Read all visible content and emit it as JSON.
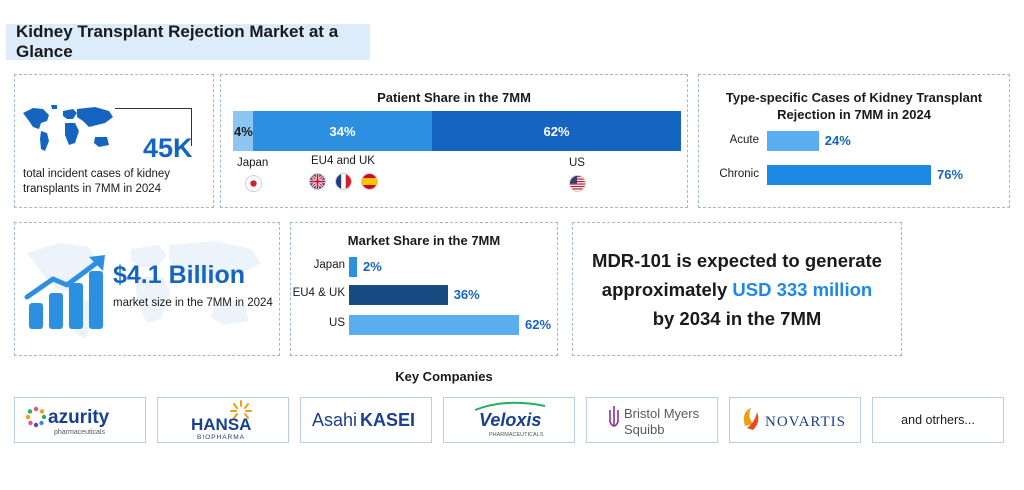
{
  "page_title": "Kidney Transplant Rejection Market at a Glance",
  "incident": {
    "value": "45K",
    "description": "total incident cases of kidney transplants in 7MM in 2024"
  },
  "patient_share": {
    "title": "Patient Share in the 7MM",
    "segments": [
      {
        "label": "4%",
        "value": 4
      },
      {
        "label": "34%",
        "value": 34
      },
      {
        "label": "62%",
        "value": 62
      }
    ],
    "regions": [
      {
        "label": "Japan"
      },
      {
        "label": "EU4 and UK"
      },
      {
        "label": "US"
      }
    ]
  },
  "type_cases": {
    "title": "Type-specific Cases of Kidney Transplant Rejection in 7MM in 2024",
    "bars": [
      {
        "label": "Acute",
        "value": 24,
        "display": "24%"
      },
      {
        "label": "Chronic",
        "value": 76,
        "display": "76%"
      }
    ]
  },
  "market_size": {
    "value": "$4.1 Billion",
    "description": "market size in the 7MM in 2024"
  },
  "market_share": {
    "title": "Market Share in the 7MM",
    "bars": [
      {
        "label": "Japan",
        "value": 2,
        "display": "2%"
      },
      {
        "label": "EU4 & UK",
        "value": 36,
        "display": "36%"
      },
      {
        "label": "US",
        "value": 62,
        "display": "62%"
      }
    ]
  },
  "forecast": {
    "line1": "MDR-101 is expected to generate",
    "line2_prefix": "approximately ",
    "line2_highlight": "USD 333 million",
    "line3": "by 2034 in the 7MM"
  },
  "key_companies": {
    "title": "Key Companies",
    "logos": {
      "azurity_name": "azurity",
      "azurity_sub": "pharmaceuticals",
      "hansa_name": "HANSA",
      "hansa_sub": "BIOPHARMA",
      "asahi_a": "Asahi",
      "asahi_b": "KASEI",
      "veloxis_name": "Veloxis",
      "veloxis_sub": "PHARMACEUTICALS",
      "bms_line1": "Bristol Myers",
      "bms_line2": "Squibb",
      "novartis_name": "NOVARTIS"
    },
    "others": "and otrhers..."
  },
  "colors": {
    "dark_blue": "#1565c0",
    "mid_blue": "#2d8fe0",
    "light_blue": "#8cc4f2",
    "navy": "#174a80",
    "title_bg": "#dcecfb"
  }
}
